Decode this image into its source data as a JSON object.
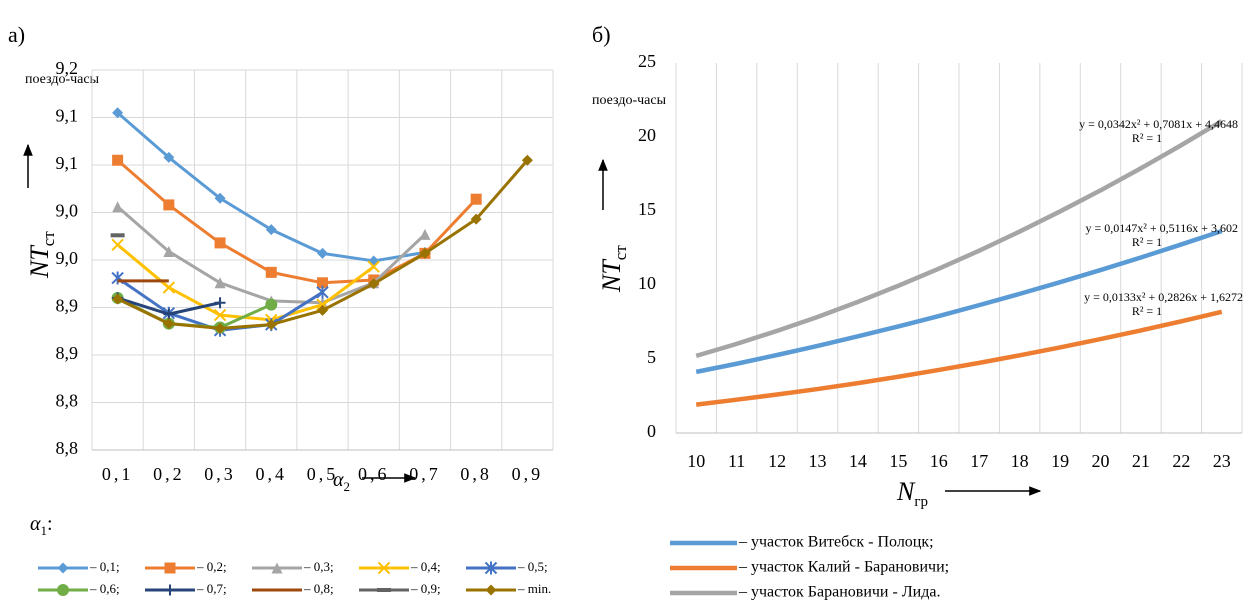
{
  "chart_data": [
    {
      "type": "line",
      "label": "а)",
      "unit": "поездо-часы",
      "y_label": "NT",
      "y_label_sub": "ст",
      "x_label": "α",
      "x_label_sub": "2",
      "legend_title": "α",
      "legend_title_sub": "1",
      "legend_title_end": ":",
      "grid": "both",
      "categories": [
        "0,1",
        "0,2",
        "0,3",
        "0,4",
        "0,5",
        "0,6",
        "0,7",
        "0,8",
        "0,9"
      ],
      "ylim": [
        8.8,
        9.2
      ],
      "yticks": [
        {
          "value": 8.8,
          "label": "8,8"
        },
        {
          "value": 8.85,
          "label": "8,8"
        },
        {
          "value": 8.9,
          "label": "8,9"
        },
        {
          "value": 8.95,
          "label": "8,9"
        },
        {
          "value": 9.0,
          "label": "9,0"
        },
        {
          "value": 9.05,
          "label": "9,0"
        },
        {
          "value": 9.1,
          "label": "9,1"
        },
        {
          "value": 9.15,
          "label": "9,1"
        },
        {
          "value": 9.2,
          "label": "9,2"
        }
      ],
      "series": [
        {
          "name": "– 0,1;",
          "color": "#5b9bd5",
          "marker": "diamond",
          "values": [
            9.155,
            9.108,
            9.065,
            9.032,
            9.007,
            8.999,
            9.008,
            null,
            null
          ]
        },
        {
          "name": "– 0,2;",
          "color": "#ed7d31",
          "marker": "square",
          "values": [
            9.105,
            9.058,
            9.018,
            8.987,
            8.976,
            8.979,
            9.007,
            9.064,
            null
          ]
        },
        {
          "name": "– 0,3;",
          "color": "#a5a5a5",
          "marker": "triangle",
          "values": [
            9.056,
            9.009,
            8.976,
            8.957,
            8.955,
            8.976,
            9.027,
            null,
            null
          ]
        },
        {
          "name": "– 0,4;",
          "color": "#ffc000",
          "marker": "x",
          "values": [
            9.016,
            8.971,
            8.942,
            8.937,
            8.953,
            8.993,
            null,
            null,
            null
          ]
        },
        {
          "name": "– 0,5;",
          "color": "#4472c4",
          "marker": "star",
          "values": [
            8.981,
            8.944,
            8.926,
            8.932,
            8.966,
            null,
            null,
            null,
            null
          ]
        },
        {
          "name": "– 0,6;",
          "color": "#70ad47",
          "marker": "circle",
          "values": [
            8.96,
            8.933,
            8.929,
            8.953,
            null,
            null,
            null,
            null,
            null
          ]
        },
        {
          "name": "– 0,7;",
          "color": "#264478",
          "marker": "plus",
          "values": [
            8.96,
            8.943,
            8.955,
            null,
            null,
            null,
            null,
            null,
            null
          ]
        },
        {
          "name": "– 0,8;",
          "color": "#9e480e",
          "marker": "none",
          "values": [
            8.978,
            8.978,
            null,
            null,
            null,
            null,
            null,
            null,
            null
          ]
        },
        {
          "name": "– 0,9;",
          "color": "#636363",
          "marker": "dash",
          "values": [
            9.026,
            null,
            null,
            null,
            null,
            null,
            null,
            null,
            null
          ]
        },
        {
          "name": "– min.",
          "color": "#997300",
          "marker": "diamond",
          "values": [
            8.959,
            8.933,
            8.928,
            8.932,
            8.947,
            8.975,
            9.007,
            9.043,
            9.105
          ]
        }
      ]
    },
    {
      "type": "line",
      "label": "б)",
      "unit": "поездо-часы",
      "y_label": "NT",
      "y_label_sub": "ст",
      "x_label": "N",
      "x_label_sub": "гр",
      "grid": "x",
      "categories": [
        10,
        11,
        12,
        13,
        14,
        15,
        16,
        17,
        18,
        19,
        20,
        21,
        22,
        23
      ],
      "ylim": [
        0,
        25
      ],
      "yticks": [
        0,
        5,
        10,
        15,
        20,
        25
      ],
      "series": [
        {
          "name": "– участок Витебск - Полоцк;",
          "color": "#5b9bd5",
          "marker": "none",
          "equation": "y = 0,0147x² + 0,5116x + 3,602",
          "r2": "R² = 1",
          "values": [
            4.13,
            4.68,
            5.27,
            5.88,
            6.53,
            7.2,
            7.9,
            8.64,
            9.4,
            10.19,
            11.01,
            11.86,
            12.74,
            13.65
          ]
        },
        {
          "name": "– участок Калий - Барановичи;",
          "color": "#ed7d31",
          "marker": "none",
          "equation": "y = 0,0133x² + 0,2826x + 1,6272",
          "r2": "R² = 1",
          "values": [
            1.92,
            2.25,
            2.6,
            2.97,
            3.37,
            3.8,
            4.26,
            4.74,
            5.25,
            5.78,
            6.35,
            6.93,
            7.55,
            8.19
          ]
        },
        {
          "name": "– участок Барановичи - Лида.",
          "color": "#a5a5a5",
          "marker": "none",
          "equation": "y = 0,0342x² + 0,7081x + 4,4648",
          "r2": "R² = 1",
          "values": [
            5.21,
            6.02,
            6.9,
            7.84,
            8.86,
            9.95,
            11.1,
            12.32,
            13.61,
            14.97,
            16.39,
            17.89,
            19.45,
            21.08
          ]
        }
      ]
    }
  ]
}
